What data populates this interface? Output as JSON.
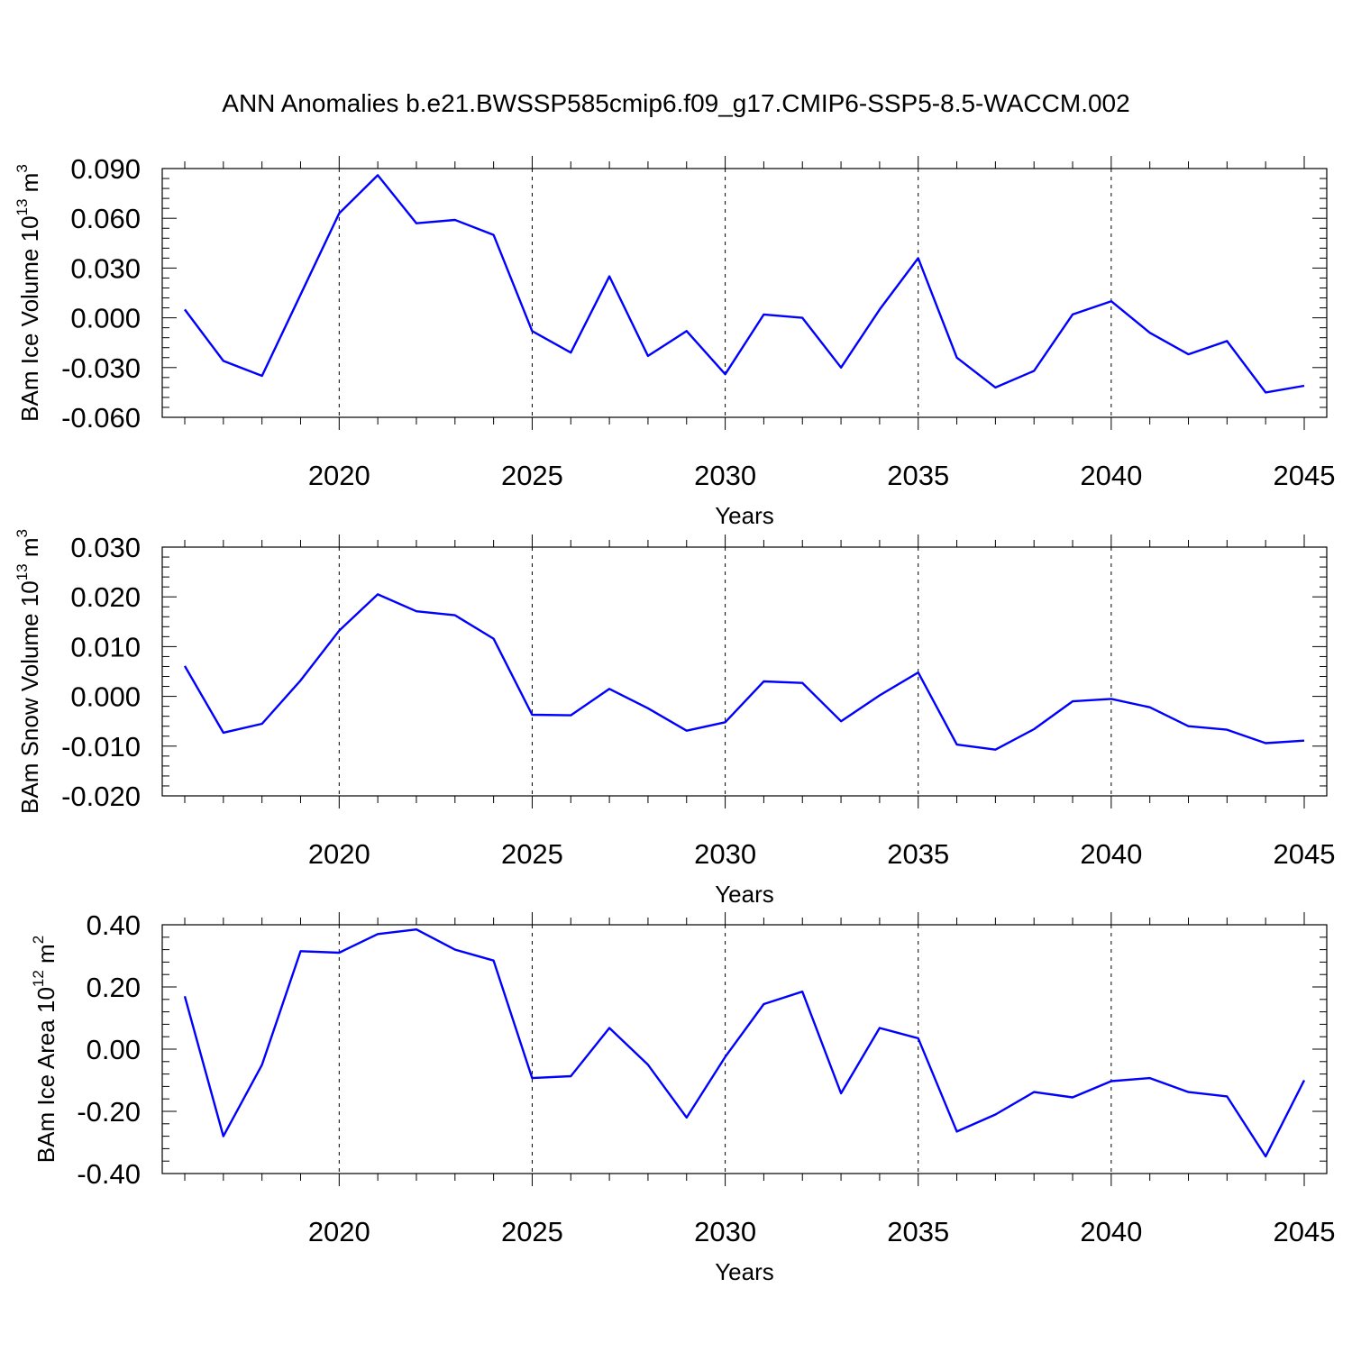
{
  "title": "ANN Anomalies b.e21.BWSSP585cmip6.f09_g17.CMIP6-SSP5-8.5-WACCM.002",
  "line_color": "#0000ff",
  "chart_data": [
    {
      "type": "line",
      "ylabel": "BAm Ice Volume 10",
      "ylabel_exp": "13",
      "ylabel_unit": " m",
      "ylabel_unit_exp": "3",
      "xlabel": "Years",
      "xlim": [
        2016,
        2045
      ],
      "ylim": [
        -0.06,
        0.09
      ],
      "x_ticks": [
        "2020",
        "2025",
        "2030",
        "2035",
        "2040",
        "2045"
      ],
      "y_ticks": [
        "0.090",
        "0.060",
        "0.030",
        "0.000",
        "-0.030",
        "-0.060"
      ],
      "x": [
        2016,
        2017,
        2018,
        2019,
        2020,
        2021,
        2022,
        2023,
        2024,
        2025,
        2026,
        2027,
        2028,
        2029,
        2030,
        2031,
        2032,
        2033,
        2034,
        2035,
        2036,
        2037,
        2038,
        2039,
        2040,
        2041,
        2042,
        2043,
        2044,
        2045
      ],
      "values": [
        0.005,
        -0.026,
        -0.035,
        0.014,
        0.063,
        0.086,
        0.057,
        0.059,
        0.05,
        -0.008,
        -0.021,
        0.025,
        -0.023,
        -0.008,
        -0.034,
        0.002,
        0.0,
        -0.03,
        0.005,
        0.036,
        -0.024,
        -0.042,
        -0.032,
        0.002,
        0.01,
        -0.009,
        -0.022,
        -0.014,
        -0.045,
        -0.041
      ]
    },
    {
      "type": "line",
      "ylabel": "BAm Snow Volume 10",
      "ylabel_exp": "13",
      "ylabel_unit": " m",
      "ylabel_unit_exp": "3",
      "xlabel": "Years",
      "xlim": [
        2016,
        2045
      ],
      "ylim": [
        -0.02,
        0.03
      ],
      "x_ticks": [
        "2020",
        "2025",
        "2030",
        "2035",
        "2040",
        "2045"
      ],
      "y_ticks": [
        "0.030",
        "0.020",
        "0.010",
        "0.000",
        "-0.010",
        "-0.020"
      ],
      "x": [
        2016,
        2017,
        2018,
        2019,
        2020,
        2021,
        2022,
        2023,
        2024,
        2025,
        2026,
        2027,
        2028,
        2029,
        2030,
        2031,
        2032,
        2033,
        2034,
        2035,
        2036,
        2037,
        2038,
        2039,
        2040,
        2041,
        2042,
        2043,
        2044,
        2045
      ],
      "values": [
        0.0061,
        -0.0073,
        -0.0055,
        0.0032,
        0.0132,
        0.0205,
        0.0171,
        0.0163,
        0.0116,
        -0.0037,
        -0.0038,
        0.0015,
        -0.0024,
        -0.0069,
        -0.0052,
        0.003,
        0.0027,
        -0.005,
        0.0002,
        0.0048,
        -0.0097,
        -0.0107,
        -0.0066,
        -0.001,
        -0.0005,
        -0.0022,
        -0.006,
        -0.0067,
        -0.0094,
        -0.0089
      ]
    },
    {
      "type": "line",
      "ylabel": "BAm Ice Area 10",
      "ylabel_exp": "12",
      "ylabel_unit": " m",
      "ylabel_unit_exp": "2",
      "xlabel": "Years",
      "xlim": [
        2016,
        2045
      ],
      "ylim": [
        -0.4,
        0.4
      ],
      "x_ticks": [
        "2020",
        "2025",
        "2030",
        "2035",
        "2040",
        "2045"
      ],
      "y_ticks": [
        "0.40",
        "0.20",
        "0.00",
        "-0.20",
        "-0.40"
      ],
      "x": [
        2016,
        2017,
        2018,
        2019,
        2020,
        2021,
        2022,
        2023,
        2024,
        2025,
        2026,
        2027,
        2028,
        2029,
        2030,
        2031,
        2032,
        2033,
        2034,
        2035,
        2036,
        2037,
        2038,
        2039,
        2040,
        2041,
        2042,
        2043,
        2044,
        2045
      ],
      "values": [
        0.17,
        -0.28,
        -0.05,
        0.315,
        0.31,
        0.37,
        0.385,
        0.32,
        0.285,
        -0.093,
        -0.087,
        0.068,
        -0.05,
        -0.22,
        -0.025,
        0.145,
        0.185,
        -0.142,
        0.068,
        0.035,
        -0.265,
        -0.21,
        -0.138,
        -0.155,
        -0.103,
        -0.093,
        -0.138,
        -0.152,
        -0.345,
        -0.1
      ]
    }
  ]
}
